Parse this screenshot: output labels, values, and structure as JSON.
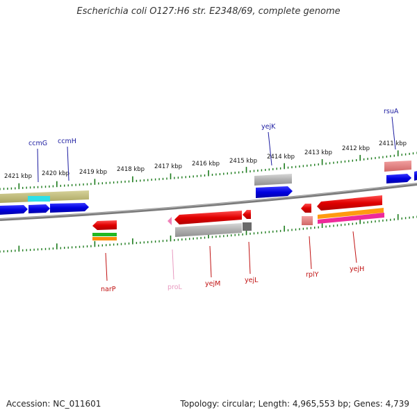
{
  "title": "Escherichia coli O127:H6 str. E2348/69, complete genome",
  "footer": {
    "accession": "Accession: NC_011601",
    "topology": "Topology: circular; Length: 4,965,553 bp; Genes: 4,739"
  },
  "colors": {
    "ruler": "#1a7a1a",
    "backbone": "#7a7a7a",
    "forward_label": "#1a1aa0",
    "reverse_label": "#c01010",
    "pseudo_label": "#e89ac0"
  },
  "ruler_labels": [
    "2421 kbp",
    "2420 kbp",
    "2419 kbp",
    "2418 kbp",
    "2417 kbp",
    "2416 kbp",
    "2415 kbp",
    "2414 kbp",
    "2413 kbp",
    "2412 kbp",
    "2411 kbp"
  ],
  "genes": [
    {
      "name": "ccmG",
      "strand": "top"
    },
    {
      "name": "ccmH",
      "strand": "top"
    },
    {
      "name": "yejK",
      "strand": "top"
    },
    {
      "name": "rsuA",
      "strand": "top"
    },
    {
      "name": "narP",
      "strand": "bottom"
    },
    {
      "name": "proL",
      "strand": "bottom"
    },
    {
      "name": "yejM",
      "strand": "bottom"
    },
    {
      "name": "yejL",
      "strand": "bottom"
    },
    {
      "name": "rplY",
      "strand": "bottom"
    },
    {
      "name": "yejH",
      "strand": "bottom"
    }
  ]
}
